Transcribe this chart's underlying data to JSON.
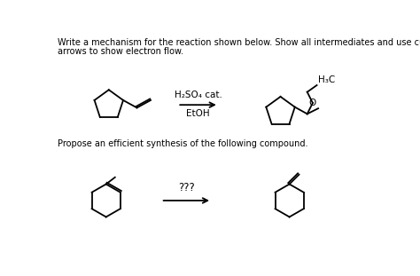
{
  "background_color": "#ffffff",
  "title_text1": "Write a mechanism for the reaction shown below. Show all intermediates and use curved",
  "title_text2": "arrows to show electron flow.",
  "reagent_line1": "H₂SO₄ cat.",
  "reagent_line2": "EtOH",
  "propose_text": "Propose an efficient synthesis of the following compound.",
  "question_marks": "???",
  "fig_width": 4.74,
  "fig_height": 3.11,
  "dpi": 100
}
